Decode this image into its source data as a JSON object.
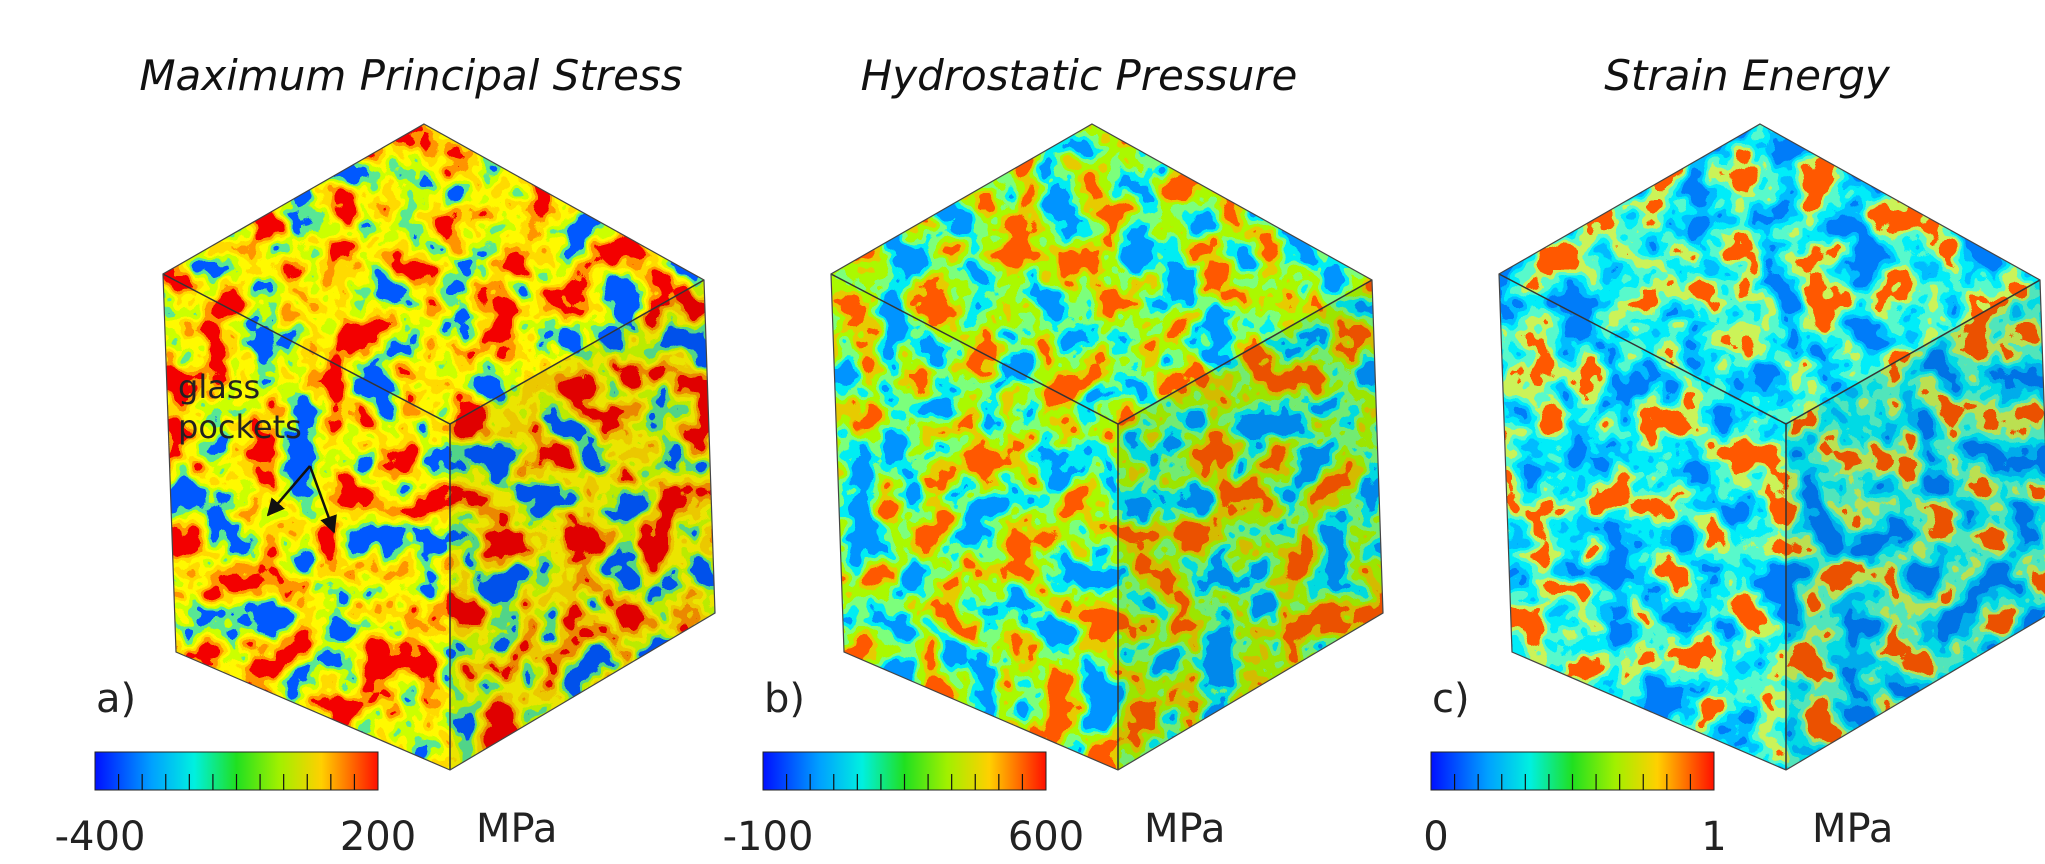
{
  "panels": [
    {
      "title": "Maximum Principal Stress",
      "label": "a)",
      "annotation": [
        "glass",
        "pockets"
      ],
      "colorbar": {
        "min": "-400",
        "max": "200",
        "unit": "MPa"
      }
    },
    {
      "title": "Hydrostatic Pressure",
      "label": "b)",
      "colorbar": {
        "min": "-100",
        "max": "600",
        "unit": "MPa"
      }
    },
    {
      "title": "Strain Energy",
      "label": "c)",
      "colorbar": {
        "min": "0",
        "max": "1",
        "unit": "MPa"
      }
    }
  ]
}
